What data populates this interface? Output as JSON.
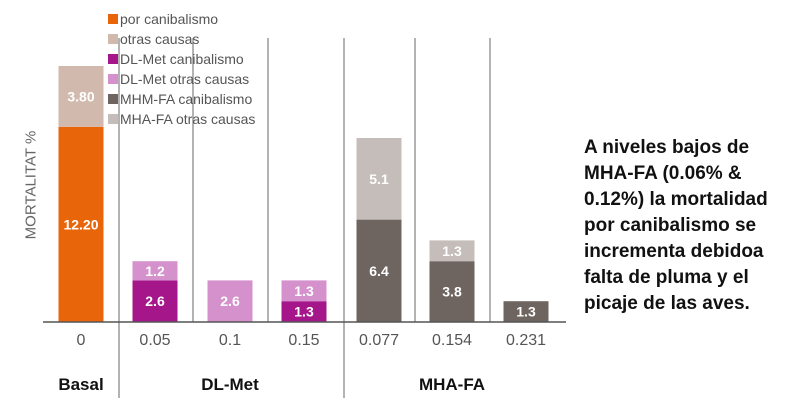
{
  "chart_data": {
    "type": "bar",
    "stacked": true,
    "ylabel": "MORTALITAT %",
    "groups": [
      "Basal",
      "DL-Met",
      "MHA-FA"
    ],
    "categories": [
      "0",
      "0.05",
      "0.1",
      "0.15",
      "0.077",
      "0.154",
      "0.231"
    ],
    "category_group": [
      0,
      1,
      1,
      1,
      2,
      2,
      2
    ],
    "series": [
      {
        "name": "por canibalismo",
        "color": "#e8650a",
        "values": [
          12.2,
          null,
          null,
          null,
          null,
          null,
          null
        ]
      },
      {
        "name": "otras causas",
        "color": "#d2b9ad",
        "values": [
          3.8,
          null,
          null,
          null,
          null,
          null,
          null
        ]
      },
      {
        "name": "DL-Met canibalismo",
        "color": "#a4168a",
        "values": [
          null,
          2.6,
          null,
          1.3,
          null,
          null,
          null
        ]
      },
      {
        "name": "DL-Met otras causas",
        "color": "#d491cc",
        "values": [
          null,
          1.2,
          2.6,
          1.3,
          null,
          null,
          null
        ]
      },
      {
        "name": "MHM-FA canibalismo",
        "color": "#6e6561",
        "values": [
          null,
          null,
          null,
          null,
          6.4,
          3.8,
          1.3
        ]
      },
      {
        "name": "MHA-FA otras causas",
        "color": "#c4bdb9",
        "values": [
          null,
          null,
          null,
          null,
          5.1,
          1.3,
          null
        ]
      }
    ],
    "data_labels": [
      [
        "12.20",
        "3.80"
      ],
      [
        "2.6",
        "1.2"
      ],
      [
        "2.6"
      ],
      [
        "1.3",
        "1.3"
      ],
      [
        "6.4",
        "5.1"
      ],
      [
        "3.8",
        "1.3"
      ],
      [
        "1.3"
      ]
    ],
    "ylim": [
      0,
      19
    ],
    "grid": false,
    "legend_position": "top-left"
  },
  "note": "A niveles bajos de MHA-FA (0.06% & 0.12%) la mortalidad por canibalismo se incrementa debidoa falta de pluma y el picaje de las aves."
}
